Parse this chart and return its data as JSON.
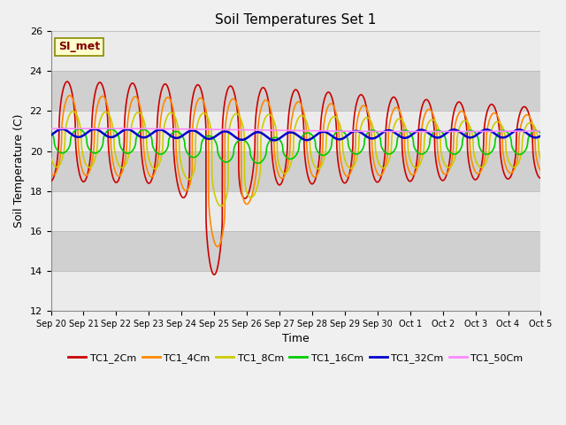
{
  "title": "Soil Temperatures Set 1",
  "xlabel": "Time",
  "ylabel": "Soil Temperature (C)",
  "ylim": [
    12,
    26
  ],
  "annotation": "SI_met",
  "series": [
    {
      "label": "TC1_2Cm",
      "color": "#cc0000",
      "lw": 1.2
    },
    {
      "label": "TC1_4Cm",
      "color": "#ff8800",
      "lw": 1.2
    },
    {
      "label": "TC1_8Cm",
      "color": "#cccc00",
      "lw": 1.2
    },
    {
      "label": "TC1_16Cm",
      "color": "#00cc00",
      "lw": 1.2
    },
    {
      "label": "TC1_32Cm",
      "color": "#0000cc",
      "lw": 1.8
    },
    {
      "label": "TC1_50Cm",
      "color": "#ff88ff",
      "lw": 1.2
    }
  ],
  "fig_bg": "#f0f0f0",
  "plot_bg": "#d8d8d8",
  "band_white": "#ebebeb",
  "band_gray": "#d0d0d0",
  "xtick_labels": [
    "Sep 20",
    "Sep 21",
    "Sep 22",
    "Sep 23",
    "Sep 24",
    "Sep 25",
    "Sep 26",
    "Sep 27",
    "Sep 28",
    "Sep 29",
    "Sep 30",
    "Oct 1",
    "Oct 2",
    "Oct 3",
    "Oct 4",
    "Oct 5"
  ],
  "ytick_values": [
    12,
    14,
    16,
    18,
    20,
    22,
    24,
    26
  ]
}
